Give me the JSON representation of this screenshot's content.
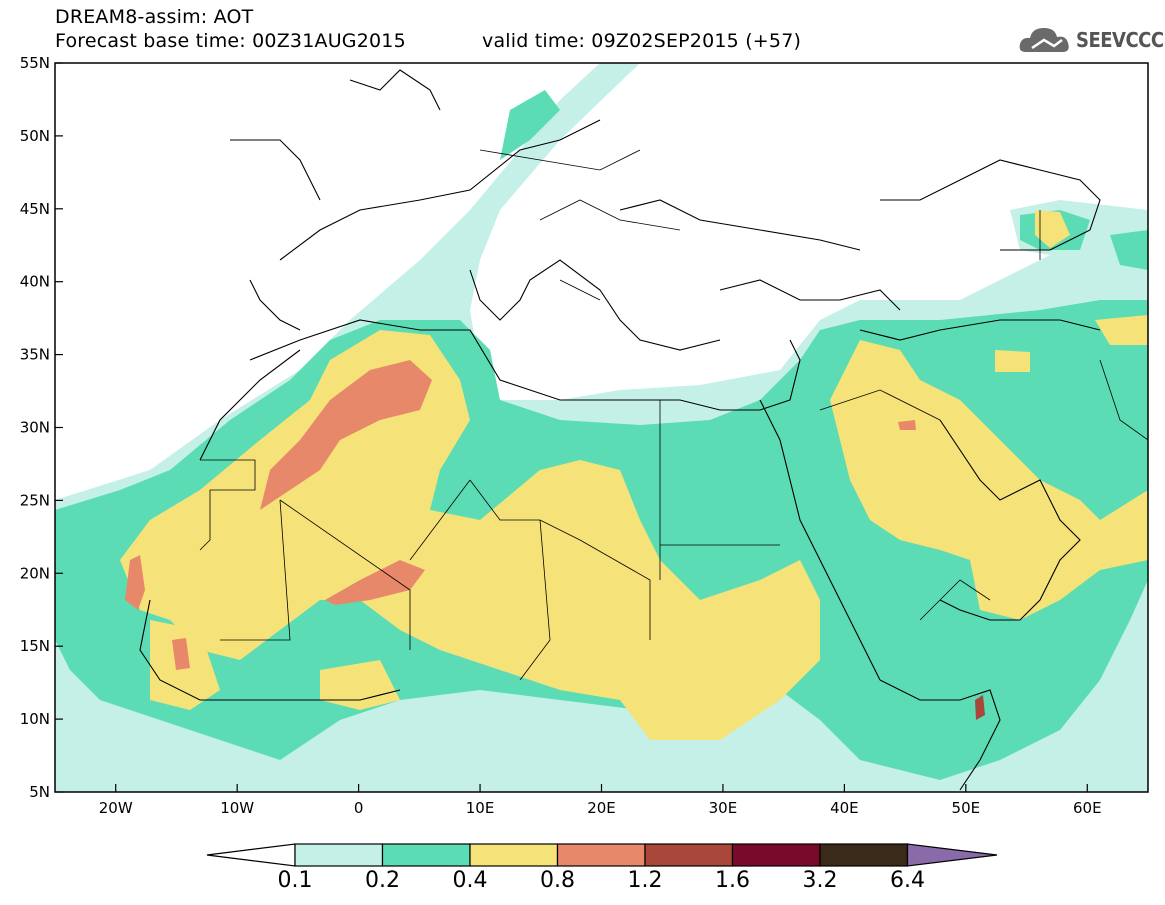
{
  "header": {
    "title": "DREAM8-assim: AOT",
    "base_time": "Forecast base time: 00Z31AUG2015",
    "valid_time": "valid time: 09Z02SEP2015 (+57)",
    "logo_text": "SEEVCCC",
    "logo_icon": "cloud-icon"
  },
  "axes": {
    "x_ticks": [
      "20W",
      "10W",
      "0",
      "10E",
      "20E",
      "30E",
      "40E",
      "50E",
      "60E"
    ],
    "y_ticks": [
      "55N",
      "50N",
      "45N",
      "40N",
      "35N",
      "30N",
      "25N",
      "20N",
      "15N",
      "10N",
      "5N"
    ]
  },
  "colorbar": {
    "labels": [
      "0.1",
      "0.2",
      "0.4",
      "0.8",
      "1.2",
      "1.6",
      "3.2",
      "6.4"
    ],
    "colors": [
      "#c4f0e8",
      "#5cdcb4",
      "#f5e37a",
      "#e8886a",
      "#a8473a",
      "#7a0a2a",
      "#3a2a1a"
    ],
    "under_color": "#ffffff",
    "over_color": "#8a6aa8"
  },
  "chart_data": {
    "type": "heatmap",
    "variable": "AOT",
    "lon_range": [
      -25,
      65
    ],
    "lat_range": [
      5,
      55
    ],
    "levels": [
      0.1,
      0.2,
      0.4,
      0.8,
      1.2,
      1.6,
      3.2,
      6.4
    ]
  }
}
